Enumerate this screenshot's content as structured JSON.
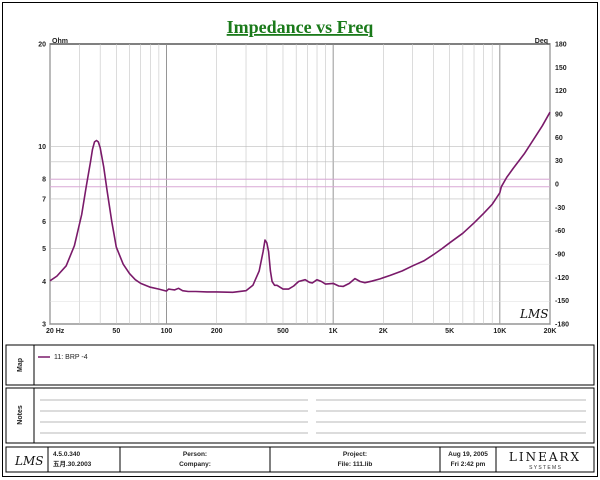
{
  "chart_data": {
    "type": "line",
    "title": "Impedance vs Freq",
    "y_left_unit": "Ohm",
    "y_right_unit": "Deg",
    "x_scale": "log",
    "y_left_scale": "log",
    "xlim": [
      20,
      20000
    ],
    "ylim": [
      3,
      20
    ],
    "y_right_lim": [
      -180,
      180
    ],
    "x_ticks": [
      "20 Hz",
      "50",
      "100",
      "200",
      "500",
      "1K",
      "2K",
      "5K",
      "10K",
      "20K"
    ],
    "x_tick_values": [
      20,
      50,
      100,
      200,
      500,
      1000,
      2000,
      5000,
      10000,
      20000
    ],
    "y_left_ticks": [
      "20",
      "10",
      "8",
      "7",
      "6",
      "5",
      "4",
      "3"
    ],
    "y_left_tick_values": [
      20,
      10,
      8,
      7,
      6,
      5,
      4,
      3
    ],
    "y_right_ticks": [
      "180",
      "150",
      "120",
      "90",
      "60",
      "30",
      "0",
      "-30",
      "-60",
      "-90",
      "-120",
      "-150",
      "-180"
    ],
    "reference_lines": [
      8,
      7.6
    ],
    "grid": true,
    "watermark": "LMS",
    "series": [
      {
        "name": "11: BRP -4",
        "color": "#7a1a6a",
        "x": [
          20,
          22,
          25,
          28,
          31,
          33,
          35,
          36,
          37,
          38,
          39,
          40,
          42,
          44,
          47,
          50,
          55,
          60,
          65,
          70,
          80,
          90,
          100,
          103,
          107,
          112,
          118,
          125,
          135,
          150,
          175,
          200,
          250,
          300,
          330,
          360,
          380,
          390,
          400,
          410,
          420,
          430,
          445,
          460,
          480,
          500,
          540,
          580,
          620,
          680,
          720,
          750,
          800,
          850,
          900,
          1000,
          1080,
          1150,
          1250,
          1350,
          1450,
          1550,
          1700,
          1900,
          2200,
          2600,
          3000,
          3500,
          4000,
          4500,
          5000,
          6000,
          7000,
          8000,
          9000,
          10000,
          10200,
          11000,
          12000,
          14000,
          16000,
          18000,
          20000
        ],
        "values": [
          4.02,
          4.15,
          4.45,
          5.1,
          6.3,
          7.6,
          9.0,
          9.8,
          10.3,
          10.4,
          10.3,
          9.9,
          8.7,
          7.4,
          6.0,
          5.05,
          4.5,
          4.22,
          4.05,
          3.95,
          3.85,
          3.8,
          3.75,
          3.8,
          3.79,
          3.78,
          3.82,
          3.76,
          3.74,
          3.74,
          3.73,
          3.73,
          3.72,
          3.76,
          3.9,
          4.3,
          4.9,
          5.3,
          5.2,
          4.9,
          4.3,
          4.0,
          3.9,
          3.9,
          3.85,
          3.8,
          3.8,
          3.88,
          4.0,
          4.05,
          3.98,
          3.96,
          4.05,
          4.0,
          3.93,
          3.95,
          3.88,
          3.87,
          3.95,
          4.08,
          4.0,
          3.97,
          4.01,
          4.07,
          4.17,
          4.3,
          4.45,
          4.6,
          4.8,
          5.0,
          5.2,
          5.55,
          5.95,
          6.35,
          6.75,
          7.3,
          7.6,
          8.1,
          8.6,
          9.5,
          10.5,
          11.5,
          12.6
        ]
      }
    ]
  },
  "map_label": "Map",
  "notes_label": "Notes",
  "footer": {
    "version": "4.5.0.340",
    "date_code": "五月.30.2003",
    "person_label": "Person:",
    "company_label": "Company:",
    "project_label": "Project:",
    "file_label": "File: 111.lib",
    "date": "Aug 19, 2005",
    "time": "Fri  2:42 pm",
    "brand": "LINEARX",
    "brand_sub": "S Y S T E M S",
    "logo": "LMS"
  }
}
